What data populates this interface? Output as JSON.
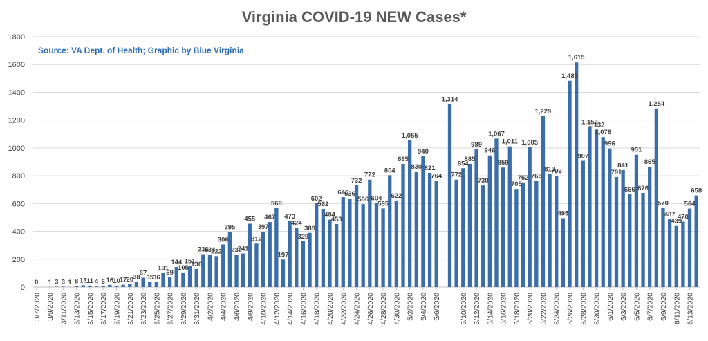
{
  "chart_data": {
    "type": "bar",
    "title": "Virginia COVID-19 NEW Cases*",
    "annotation": "Source: VA Dept. of Health; Graphic by Blue Virginia",
    "ylim": [
      0,
      1800
    ],
    "yticks": [
      0,
      200,
      400,
      600,
      800,
      1000,
      1200,
      1400,
      1600,
      1800
    ],
    "grid": true,
    "legend": "none",
    "bar_color": "#3b6ea8",
    "start_date": "2020-03-07",
    "x_tick_labels": [
      "3/7/2020",
      "3/9/2020",
      "3/11/2020",
      "3/13/2020",
      "3/15/2020",
      "3/17/2020",
      "3/19/2020",
      "3/21/2020",
      "3/23/2020",
      "3/25/2020",
      "3/27/2020",
      "3/29/2020",
      "3/31/2020",
      "4/2/2020",
      "4/4/2020",
      "4/6/2020",
      "4/8/2020",
      "4/10/2020",
      "4/12/2020",
      "4/14/2020",
      "4/16/2020",
      "4/18/2020",
      "4/20/2020",
      "4/22/2020",
      "4/24/2020",
      "4/26/2020",
      "4/28/2020",
      "4/30/2020",
      "5/2/2020",
      "5/4/2020",
      "5/6/2020",
      "5/10/2020",
      "5/12/2020",
      "5/14/2020",
      "5/16/2020",
      "5/18/2020",
      "5/20/2020",
      "5/22/2020",
      "5/24/2020",
      "5/26/2020",
      "5/28/2020",
      "5/30/2020",
      "6/1/2020",
      "6/3/2020",
      "6/5/2020",
      "6/7/2020",
      "6/9/2020",
      "6/11/2020",
      "6/13/2020"
    ],
    "values": [
      0,
      null,
      1,
      3,
      3,
      1,
      8,
      13,
      11,
      4,
      6,
      16,
      10,
      17,
      20,
      38,
      67,
      35,
      36,
      101,
      69,
      144,
      105,
      151,
      130,
      236,
      234,
      222,
      306,
      395,
      232,
      241,
      455,
      312,
      397,
      467,
      568,
      197,
      473,
      424,
      329,
      389,
      602,
      562,
      484,
      453,
      646,
      636,
      732,
      596,
      772,
      604,
      565,
      804,
      622,
      885,
      1055,
      830,
      940,
      821,
      764,
      null,
      1314,
      772,
      854,
      885,
      989,
      730,
      946,
      1067,
      859,
      1011,
      705,
      752,
      1005,
      763,
      1229,
      813,
      799,
      495,
      1483,
      1615,
      907,
      1152,
      1132,
      1078,
      996,
      791,
      841,
      666,
      951,
      676,
      865,
      1284,
      570,
      487,
      439,
      470,
      564,
      658
    ],
    "data_labels": [
      "0",
      "",
      "1",
      "3",
      "3",
      "1",
      "8",
      "13",
      "11",
      "4",
      "6",
      "16",
      "10",
      "17",
      "20",
      "38",
      "67",
      "35",
      "36",
      "101",
      "69",
      "144",
      "105",
      "151",
      "130",
      "236",
      "234",
      "222",
      "306",
      "395",
      "232",
      "241",
      "455",
      "312",
      "397",
      "467",
      "568",
      "197",
      "473",
      "424",
      "329",
      "389",
      "602",
      "562",
      "484",
      "453",
      "646",
      "636",
      "732",
      "596",
      "772",
      "604",
      "565",
      "804",
      "622",
      "885",
      "1,055",
      "830",
      "940",
      "821",
      "764",
      "",
      "1,314",
      "772",
      "854",
      "885",
      "989",
      "730",
      "946",
      "1,067",
      "859",
      "1,011",
      "705",
      "752",
      "1,005",
      "763",
      "1,229",
      "813",
      "799",
      "495",
      "1,483",
      "1,615",
      "907",
      "1,152",
      "1,132",
      "1,078",
      "996",
      "791",
      "841",
      "666",
      "951",
      "676",
      "865",
      "1,284",
      "570",
      "487",
      "439",
      "470",
      "564",
      "658"
    ]
  }
}
